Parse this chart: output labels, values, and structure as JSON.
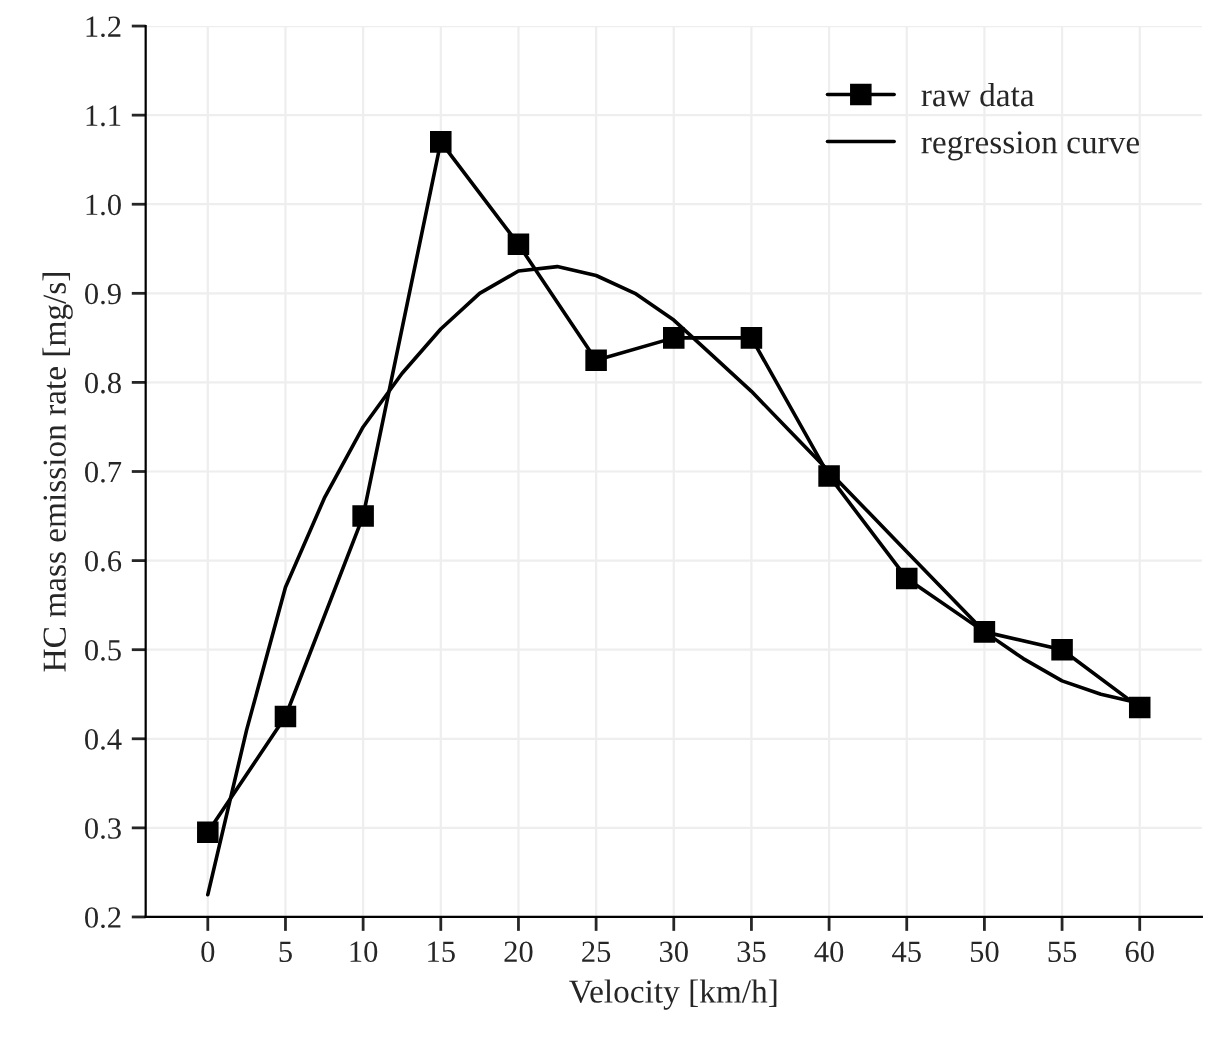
{
  "chart_data": {
    "type": "line",
    "xlabel": "Velocity [km/h]",
    "ylabel": "HC mass emission rate [mg/s]",
    "xlim": [
      -4,
      64
    ],
    "ylim": [
      0.2,
      1.2
    ],
    "xticks": [
      0,
      5,
      10,
      15,
      20,
      25,
      30,
      35,
      40,
      45,
      50,
      55,
      60
    ],
    "yticks": [
      0.2,
      0.3,
      0.4,
      0.5,
      0.6,
      0.7,
      0.8,
      0.9,
      {
        "value": 1,
        "label": "1.0"
      },
      1.1,
      1.2
    ],
    "grid": true,
    "legend": "top right",
    "series": [
      {
        "name": "raw data",
        "color": "#000000",
        "marker": "square",
        "x": [
          0,
          5,
          10,
          15,
          20,
          25,
          30,
          35,
          40,
          45,
          50,
          55,
          60
        ],
        "values": [
          0.295,
          0.425,
          0.65,
          1.07,
          0.955,
          0.825,
          0.85,
          0.85,
          0.695,
          0.58,
          0.52,
          0.5,
          0.435
        ]
      },
      {
        "name": "regression curve",
        "color": "#000000",
        "marker": "none",
        "x": [
          0,
          2.5,
          5,
          7.5,
          10,
          12.5,
          15,
          17.5,
          20,
          22.5,
          25,
          27.5,
          30,
          32.5,
          35,
          37.5,
          40,
          42.5,
          45,
          47.5,
          50,
          52.5,
          55,
          57.5,
          60
        ],
        "values": [
          0.225,
          0.41,
          0.57,
          0.67,
          0.75,
          0.81,
          0.86,
          0.9,
          0.925,
          0.93,
          0.92,
          0.9,
          0.87,
          0.83,
          0.79,
          0.745,
          0.7,
          0.655,
          0.61,
          0.565,
          0.52,
          0.49,
          0.465,
          0.45,
          0.44
        ]
      }
    ]
  }
}
